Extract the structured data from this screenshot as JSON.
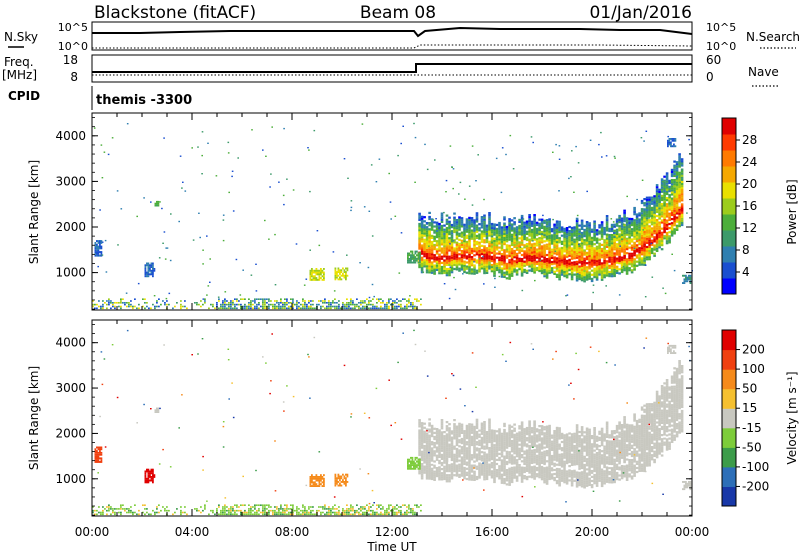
{
  "header": {
    "title_left": "Blackstone (fitACF)",
    "title_center": "Beam 08",
    "title_right": "01/Jan/2016"
  },
  "summary": {
    "nsky_label": "N.Sky",
    "nsearch_label": "N.Search",
    "top_ytick_hi": "10^5",
    "top_ytick_lo": "10^0",
    "freq_label_1": "Freq.",
    "freq_label_2": "[MHz]",
    "freq_ticks": [
      "18",
      "8"
    ],
    "nave_label": "Nave",
    "nave_ticks": [
      "60",
      "0"
    ],
    "cpid_label": "CPID",
    "cpid_value": "themis -3300"
  },
  "chart_data": [
    {
      "type": "heatmap",
      "panel": "power",
      "ylabel": "Slant Range [km]",
      "xlabel": "Time UT",
      "x_ticks": [
        "00:00",
        "04:00",
        "08:00",
        "12:00",
        "16:00",
        "20:00",
        "00:00"
      ],
      "y_ticks": [
        1000,
        2000,
        3000,
        4000
      ],
      "xlim_hours": [
        0,
        24
      ],
      "ylim_km": [
        180,
        4500
      ],
      "colorbar_label": "Power [dB]",
      "colorbar_ticks": [
        "28",
        "24",
        "20",
        "16",
        "12",
        "8",
        "4"
      ],
      "colorbar_colors": [
        "#0000ff",
        "#1a4fd0",
        "#2f7fb0",
        "#3c9a6a",
        "#4cae3a",
        "#9ccc1c",
        "#e9e000",
        "#f5a800",
        "#ff7a00",
        "#ff3a00",
        "#e00000"
      ]
    },
    {
      "type": "heatmap",
      "panel": "velocity",
      "ylabel": "Slant Range [km]",
      "xlabel": "Time UT",
      "x_ticks": [
        "00:00",
        "04:00",
        "08:00",
        "12:00",
        "16:00",
        "20:00",
        "00:00"
      ],
      "y_ticks": [
        1000,
        2000,
        3000,
        4000
      ],
      "xlim_hours": [
        0,
        24
      ],
      "ylim_km": [
        180,
        4500
      ],
      "colorbar_label": "Velocity [m s⁻¹]",
      "colorbar_ticks": [
        "200",
        "100",
        "50",
        "15",
        "-15",
        "-50",
        "-100",
        "-200"
      ],
      "colorbar_colors": [
        "#1838a8",
        "#2d6fb8",
        "#3c9c4a",
        "#7dcc3a",
        "#c8c8c0",
        "#f5c030",
        "#f58a1a",
        "#f04010",
        "#e00000"
      ]
    }
  ]
}
